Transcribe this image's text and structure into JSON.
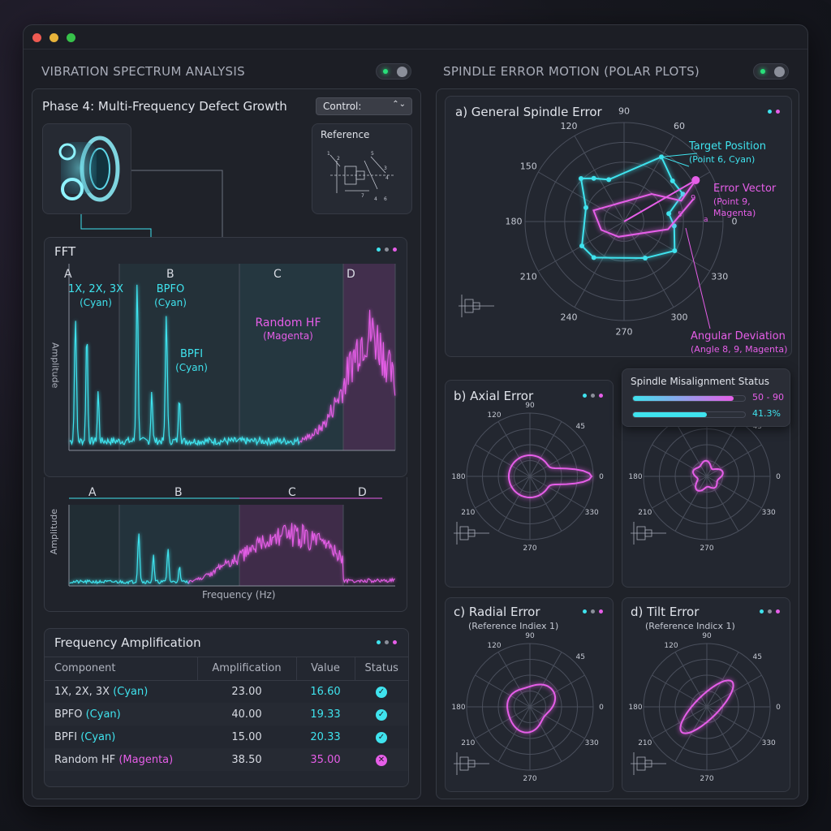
{
  "left_section": {
    "title": "VIBRATION SPECTRUM ANALYSIS",
    "phase_title": "Phase 4: Multi-Frequency Defect Growth",
    "control_select": "Control:",
    "reference_label": "Reference",
    "fft": {
      "title": "FFT",
      "regions": [
        "A",
        "B",
        "C",
        "D"
      ],
      "peak_labels": {
        "harmonics": "1X, 2X, 3X",
        "harmonics_color": "(Cyan)",
        "bpfo": "BPFO",
        "bpfo_color": "(Cyan)",
        "bpfi": "BPFI",
        "bpfi_color": "(Cyan)",
        "random": "Random HF",
        "random_color": "(Magenta)"
      },
      "ylabel": "Amplitude"
    },
    "lower_spectrum": {
      "regions": [
        "A",
        "B",
        "C",
        "D"
      ],
      "ylabel": "Amplitude",
      "xlabel": "Frequency (Hz)"
    },
    "amplification": {
      "title": "Frequency Amplification",
      "columns": [
        "Component",
        "Amplification",
        "Value",
        "Status"
      ],
      "rows": [
        {
          "component": "1X, 2X, 3X",
          "color_tag": "(Cyan)",
          "amplification": "23.00",
          "value": "16.60",
          "status": "ok",
          "color": "cyan"
        },
        {
          "component": "BPFO",
          "color_tag": "(Cyan)",
          "amplification": "40.00",
          "value": "19.33",
          "status": "ok",
          "color": "cyan"
        },
        {
          "component": "BPFI",
          "color_tag": "(Cyan)",
          "amplification": "15.00",
          "value": "20.33",
          "status": "ok",
          "color": "cyan"
        },
        {
          "component": "Random HF",
          "color_tag": "(Magenta)",
          "amplification": "38.50",
          "value": "35.00",
          "status": "fail",
          "color": "magenta"
        }
      ]
    }
  },
  "right_section": {
    "title": "SPINDLE ERROR MOTION (POLAR PLOTS)",
    "general": {
      "title": "a) General Spindle Error",
      "angle_labels": [
        "90",
        "60",
        "0",
        "330",
        "300",
        "270",
        "240",
        "210",
        "180",
        "150",
        "120"
      ],
      "target_label": "Target Position",
      "target_sub": "(Point 6, Cyan)",
      "error_label": "Error Vector",
      "error_sub": "(Point 9, Magenta)",
      "deviation_label": "Angular Deviation",
      "deviation_sub": "(Angle 8, 9, Magenta)",
      "point_9": "9",
      "point_5": "5",
      "point_a": "a"
    },
    "axial": {
      "title": "b) Axial Error"
    },
    "misalignment": {
      "title": "Spindle Misalignment Status",
      "bar1_text": "50 - 90",
      "bar1_level": 0.9,
      "bar2_text": "41.3%",
      "bar2_level": 0.66
    },
    "radial": {
      "title": "c) Radial Error",
      "subtitle": "(Reference Indiex 1)"
    },
    "tilt": {
      "title": "d) Tilt Error",
      "subtitle": "(Reference Indicx 1)"
    },
    "small_angle_labels": [
      "90",
      "45",
      "0",
      "330",
      "270",
      "210",
      "180",
      "120"
    ]
  },
  "colors": {
    "cyan": "#3fe3ee",
    "magenta": "#e65ee8",
    "green": "#29e07a"
  }
}
